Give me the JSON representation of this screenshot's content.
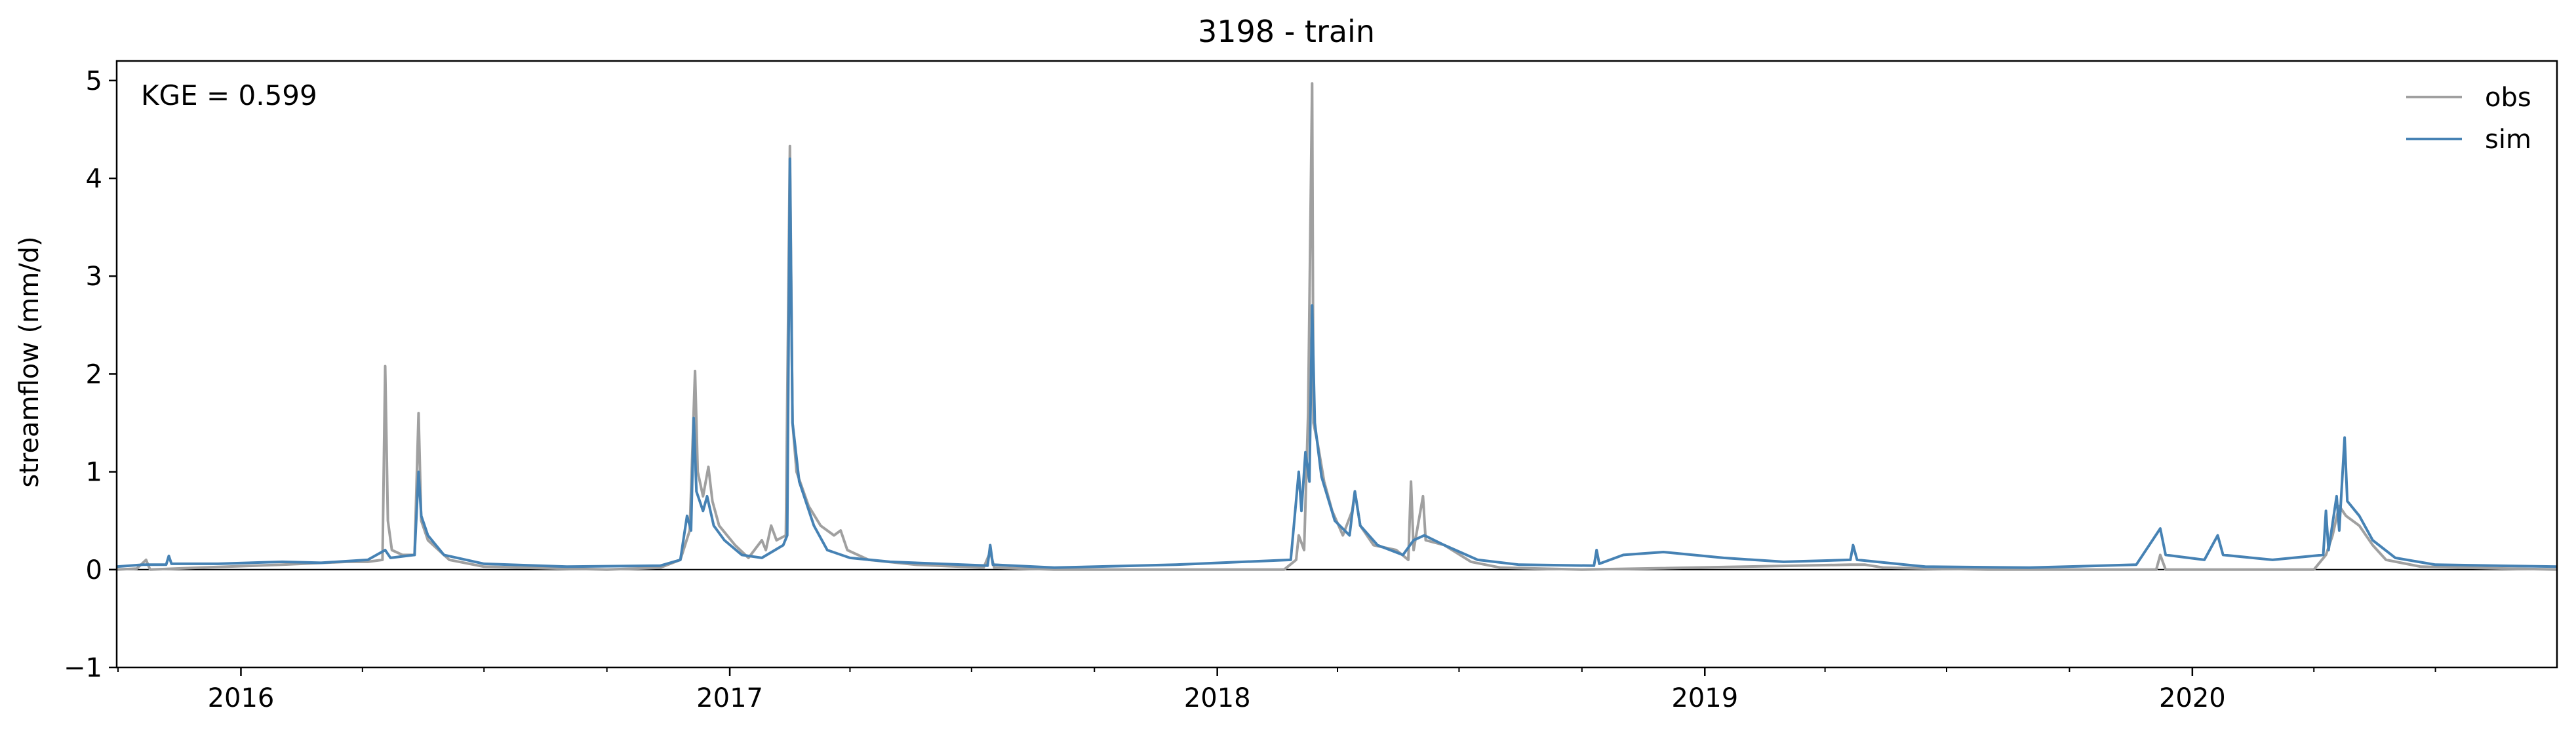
{
  "chart_data": {
    "type": "line",
    "title": "3198 - train",
    "xlabel": "",
    "ylabel": "streamflow (mm/d)",
    "annotation": "KGE = 0.599",
    "legend_placement": "top-right",
    "grid": false,
    "xlim": [
      "2015-09-30",
      "2020-09-30"
    ],
    "ylim": [
      -1,
      5.2
    ],
    "x_ticks": [
      {
        "date": "2016-01-01",
        "label": "2016"
      },
      {
        "date": "2017-01-01",
        "label": "2017"
      },
      {
        "date": "2018-01-01",
        "label": "2018"
      },
      {
        "date": "2019-01-01",
        "label": "2019"
      },
      {
        "date": "2020-01-01",
        "label": "2020"
      }
    ],
    "y_ticks": [
      {
        "value": -1,
        "label": "−1"
      },
      {
        "value": 0,
        "label": "0"
      },
      {
        "value": 1,
        "label": "1"
      },
      {
        "value": 2,
        "label": "2"
      },
      {
        "value": 3,
        "label": "3"
      },
      {
        "value": 4,
        "label": "4"
      },
      {
        "value": 5,
        "label": "5"
      }
    ],
    "series": [
      {
        "name": "obs",
        "color": "#a0a0a0",
        "points": [
          [
            "2015-09-30",
            0.0
          ],
          [
            "2015-10-15",
            0.01
          ],
          [
            "2015-10-22",
            0.1
          ],
          [
            "2015-10-25",
            0.0
          ],
          [
            "2015-12-01",
            0.02
          ],
          [
            "2016-02-01",
            0.05
          ],
          [
            "2016-03-20",
            0.08
          ],
          [
            "2016-04-05",
            0.08
          ],
          [
            "2016-04-16",
            0.1
          ],
          [
            "2016-04-18",
            2.08
          ],
          [
            "2016-04-20",
            0.5
          ],
          [
            "2016-04-23",
            0.2
          ],
          [
            "2016-05-01",
            0.15
          ],
          [
            "2016-05-10",
            0.15
          ],
          [
            "2016-05-13",
            1.6
          ],
          [
            "2016-05-15",
            0.5
          ],
          [
            "2016-05-20",
            0.3
          ],
          [
            "2016-06-05",
            0.1
          ],
          [
            "2016-07-01",
            0.03
          ],
          [
            "2016-10-01",
            0.0
          ],
          [
            "2016-11-10",
            0.02
          ],
          [
            "2016-11-25",
            0.1
          ],
          [
            "2016-12-02",
            0.4
          ],
          [
            "2016-12-06",
            2.03
          ],
          [
            "2016-12-08",
            1.0
          ],
          [
            "2016-12-12",
            0.75
          ],
          [
            "2016-12-16",
            1.05
          ],
          [
            "2016-12-19",
            0.7
          ],
          [
            "2016-12-24",
            0.45
          ],
          [
            "2017-01-05",
            0.25
          ],
          [
            "2017-01-15",
            0.12
          ],
          [
            "2017-01-25",
            0.3
          ],
          [
            "2017-01-28",
            0.2
          ],
          [
            "2017-02-01",
            0.45
          ],
          [
            "2017-02-05",
            0.3
          ],
          [
            "2017-02-12",
            0.35
          ],
          [
            "2017-02-15",
            4.33
          ],
          [
            "2017-02-17",
            1.5
          ],
          [
            "2017-02-20",
            1.0
          ],
          [
            "2017-03-01",
            0.65
          ],
          [
            "2017-03-10",
            0.45
          ],
          [
            "2017-03-20",
            0.35
          ],
          [
            "2017-03-25",
            0.4
          ],
          [
            "2017-03-30",
            0.2
          ],
          [
            "2017-04-15",
            0.1
          ],
          [
            "2017-05-20",
            0.05
          ],
          [
            "2017-07-10",
            0.02
          ],
          [
            "2017-07-15",
            0.18
          ],
          [
            "2017-07-18",
            0.02
          ],
          [
            "2017-09-01",
            0.0
          ],
          [
            "2018-02-20",
            0.0
          ],
          [
            "2018-03-01",
            0.1
          ],
          [
            "2018-03-03",
            0.35
          ],
          [
            "2018-03-07",
            0.2
          ],
          [
            "2018-03-10",
            1.6
          ],
          [
            "2018-03-13",
            4.97
          ],
          [
            "2018-03-14",
            1.5
          ],
          [
            "2018-03-17",
            1.3
          ],
          [
            "2018-03-22",
            0.9
          ],
          [
            "2018-03-28",
            0.6
          ],
          [
            "2018-04-05",
            0.35
          ],
          [
            "2018-04-12",
            0.6
          ],
          [
            "2018-04-14",
            0.8
          ],
          [
            "2018-04-18",
            0.45
          ],
          [
            "2018-04-28",
            0.25
          ],
          [
            "2018-05-15",
            0.2
          ],
          [
            "2018-05-24",
            0.1
          ],
          [
            "2018-05-26",
            0.9
          ],
          [
            "2018-05-28",
            0.2
          ],
          [
            "2018-06-04",
            0.75
          ],
          [
            "2018-06-06",
            0.3
          ],
          [
            "2018-06-20",
            0.25
          ],
          [
            "2018-07-10",
            0.08
          ],
          [
            "2018-08-01",
            0.02
          ],
          [
            "2018-10-01",
            0.0
          ],
          [
            "2019-04-20",
            0.05
          ],
          [
            "2019-05-01",
            0.05
          ],
          [
            "2019-05-15",
            0.02
          ],
          [
            "2019-08-01",
            0.0
          ],
          [
            "2019-12-05",
            0.0
          ],
          [
            "2019-12-08",
            0.15
          ],
          [
            "2019-12-12",
            0.0
          ],
          [
            "2020-04-01",
            0.0
          ],
          [
            "2020-04-10",
            0.15
          ],
          [
            "2020-04-15",
            0.35
          ],
          [
            "2020-04-20",
            0.65
          ],
          [
            "2020-04-25",
            0.55
          ],
          [
            "2020-05-05",
            0.45
          ],
          [
            "2020-05-15",
            0.25
          ],
          [
            "2020-05-25",
            0.1
          ],
          [
            "2020-06-20",
            0.03
          ],
          [
            "2020-09-30",
            0.0
          ]
        ]
      },
      {
        "name": "sim",
        "color": "#4682b4",
        "points": [
          [
            "2015-09-30",
            0.03
          ],
          [
            "2015-10-20",
            0.05
          ],
          [
            "2015-11-06",
            0.05
          ],
          [
            "2015-11-08",
            0.14
          ],
          [
            "2015-11-10",
            0.06
          ],
          [
            "2015-12-15",
            0.06
          ],
          [
            "2016-02-01",
            0.08
          ],
          [
            "2016-03-01",
            0.07
          ],
          [
            "2016-04-05",
            0.1
          ],
          [
            "2016-04-18",
            0.2
          ],
          [
            "2016-04-22",
            0.12
          ],
          [
            "2016-05-10",
            0.15
          ],
          [
            "2016-05-13",
            1.0
          ],
          [
            "2016-05-15",
            0.55
          ],
          [
            "2016-05-20",
            0.35
          ],
          [
            "2016-06-01",
            0.15
          ],
          [
            "2016-07-01",
            0.06
          ],
          [
            "2016-09-01",
            0.03
          ],
          [
            "2016-11-10",
            0.04
          ],
          [
            "2016-11-25",
            0.1
          ],
          [
            "2016-11-30",
            0.55
          ],
          [
            "2016-12-03",
            0.4
          ],
          [
            "2016-12-05",
            1.55
          ],
          [
            "2016-12-07",
            0.8
          ],
          [
            "2016-12-12",
            0.6
          ],
          [
            "2016-12-15",
            0.75
          ],
          [
            "2016-12-20",
            0.45
          ],
          [
            "2016-12-28",
            0.3
          ],
          [
            "2017-01-10",
            0.15
          ],
          [
            "2017-01-25",
            0.12
          ],
          [
            "2017-02-10",
            0.25
          ],
          [
            "2017-02-13",
            0.35
          ],
          [
            "2017-02-15",
            4.2
          ],
          [
            "2017-02-17",
            1.5
          ],
          [
            "2017-02-22",
            0.9
          ],
          [
            "2017-03-05",
            0.45
          ],
          [
            "2017-03-15",
            0.2
          ],
          [
            "2017-04-01",
            0.12
          ],
          [
            "2017-05-01",
            0.08
          ],
          [
            "2017-07-13",
            0.04
          ],
          [
            "2017-07-15",
            0.25
          ],
          [
            "2017-07-17",
            0.05
          ],
          [
            "2017-09-01",
            0.02
          ],
          [
            "2017-12-01",
            0.05
          ],
          [
            "2018-02-25",
            0.1
          ],
          [
            "2018-03-03",
            1.0
          ],
          [
            "2018-03-05",
            0.6
          ],
          [
            "2018-03-08",
            1.2
          ],
          [
            "2018-03-11",
            0.9
          ],
          [
            "2018-03-13",
            2.7
          ],
          [
            "2018-03-15",
            1.5
          ],
          [
            "2018-03-20",
            0.95
          ],
          [
            "2018-03-30",
            0.5
          ],
          [
            "2018-04-10",
            0.35
          ],
          [
            "2018-04-14",
            0.8
          ],
          [
            "2018-04-18",
            0.45
          ],
          [
            "2018-05-01",
            0.25
          ],
          [
            "2018-05-20",
            0.15
          ],
          [
            "2018-05-28",
            0.3
          ],
          [
            "2018-06-05",
            0.35
          ],
          [
            "2018-06-20",
            0.25
          ],
          [
            "2018-07-15",
            0.1
          ],
          [
            "2018-08-15",
            0.05
          ],
          [
            "2018-10-10",
            0.04
          ],
          [
            "2018-10-12",
            0.2
          ],
          [
            "2018-10-14",
            0.06
          ],
          [
            "2018-11-01",
            0.15
          ],
          [
            "2018-12-01",
            0.18
          ],
          [
            "2019-01-15",
            0.12
          ],
          [
            "2019-03-01",
            0.08
          ],
          [
            "2019-04-20",
            0.1
          ],
          [
            "2019-04-22",
            0.25
          ],
          [
            "2019-04-25",
            0.1
          ],
          [
            "2019-06-15",
            0.03
          ],
          [
            "2019-09-01",
            0.02
          ],
          [
            "2019-11-20",
            0.05
          ],
          [
            "2019-12-08",
            0.42
          ],
          [
            "2019-12-12",
            0.15
          ],
          [
            "2020-01-10",
            0.1
          ],
          [
            "2020-01-20",
            0.35
          ],
          [
            "2020-01-24",
            0.15
          ],
          [
            "2020-03-01",
            0.1
          ],
          [
            "2020-04-08",
            0.15
          ],
          [
            "2020-04-10",
            0.6
          ],
          [
            "2020-04-12",
            0.2
          ],
          [
            "2020-04-18",
            0.75
          ],
          [
            "2020-04-20",
            0.4
          ],
          [
            "2020-04-24",
            1.35
          ],
          [
            "2020-04-26",
            0.7
          ],
          [
            "2020-05-05",
            0.55
          ],
          [
            "2020-05-15",
            0.3
          ],
          [
            "2020-06-01",
            0.12
          ],
          [
            "2020-07-01",
            0.05
          ],
          [
            "2020-09-30",
            0.03
          ]
        ]
      }
    ]
  }
}
